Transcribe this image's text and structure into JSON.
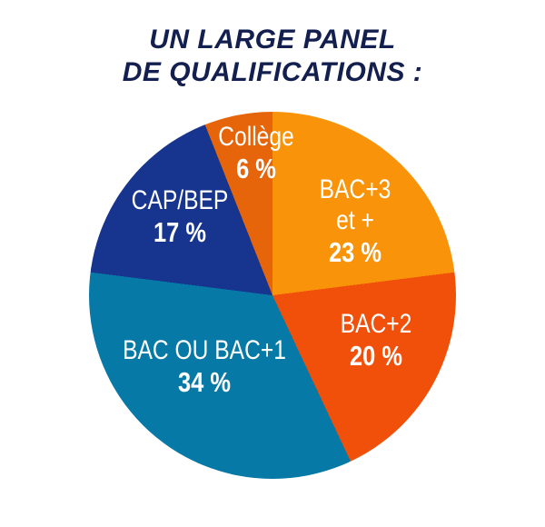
{
  "title": {
    "line1": "UN LARGE PANEL",
    "line2": "DE QUALIFICATIONS :",
    "color": "#131f4e"
  },
  "chart_data": {
    "type": "pie",
    "title": "UN LARGE PANEL DE QUALIFICATIONS :",
    "legend_position": "none",
    "labels_position": "inside",
    "label_color": "#ffffff",
    "start_angle": "top, clockwise",
    "slices": [
      {
        "label": "BAC+3",
        "label_line2": "et +",
        "value": 23,
        "pct_label": "23 %",
        "color": "#f9940a"
      },
      {
        "label": "BAC+2",
        "value": 20,
        "pct_label": "20 %",
        "color": "#f1500a"
      },
      {
        "label": "BAC OU BAC+1",
        "value": 34,
        "pct_label": "34 %",
        "color": "#0779a6"
      },
      {
        "label": "CAP/BEP",
        "value": 17,
        "pct_label": "17 %",
        "color": "#17358e"
      },
      {
        "label": "Collège",
        "value": 6,
        "pct_label": "6 %",
        "color": "#e6650a"
      }
    ]
  }
}
